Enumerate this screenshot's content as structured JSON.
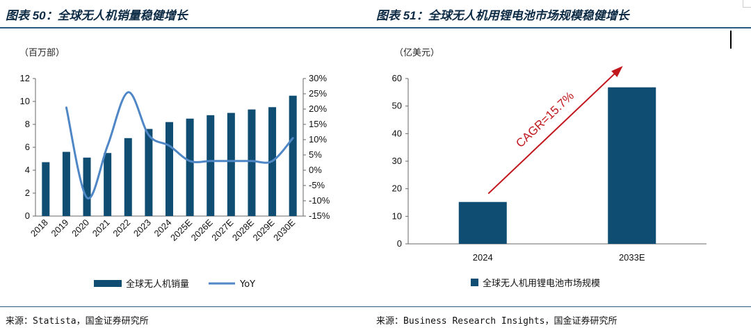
{
  "left_title": "图表 50：全球无人机销量稳健增长",
  "right_title": "图表 51：全球无人机用锂电池市场规模稳健增长",
  "left_unit": "（百万部）",
  "right_unit": "（亿美元）",
  "left_source": "来源：Statista，国金证券研究所",
  "right_source": "来源：Business Research Insights，国金证券研究所",
  "colors": {
    "bar": "#0f4d73",
    "line": "#4f86c6",
    "arrow": "#c0161c",
    "rule": "#2c5a7c",
    "title": "#0c2a44"
  },
  "chart_data": [
    {
      "type": "bar+line",
      "title": "全球无人机销量稳健增长",
      "categories": [
        "2018",
        "2019",
        "2020",
        "2021",
        "2022",
        "2023",
        "2024",
        "2025E",
        "2026E",
        "2027E",
        "2028E",
        "2029E",
        "2030E"
      ],
      "series": [
        {
          "name": "全球无人机销量",
          "type": "bar",
          "axis": "left",
          "values": [
            4.7,
            5.6,
            5.1,
            5.5,
            6.8,
            7.6,
            8.2,
            8.5,
            8.8,
            9.0,
            9.3,
            9.5,
            10.5
          ]
        },
        {
          "name": "YoY",
          "type": "line",
          "axis": "right",
          "unit": "%",
          "values": [
            null,
            20.5,
            -9.0,
            8.0,
            25.5,
            11.5,
            8.0,
            3.0,
            3.0,
            3.0,
            3.0,
            3.0,
            10.5
          ]
        }
      ],
      "left_axis": {
        "ylim": [
          0,
          12
        ],
        "ticks": [
          "0",
          "2",
          "4",
          "6",
          "8",
          "10",
          "12"
        ]
      },
      "right_axis": {
        "ylim": [
          -15,
          30
        ],
        "ticks": [
          "-15%",
          "-10%",
          "-5%",
          "0%",
          "5%",
          "10%",
          "15%",
          "20%",
          "25%",
          "30%"
        ]
      },
      "ylabel": "（百万部）",
      "legend": [
        "全球无人机销量",
        "YoY"
      ],
      "legend_position": "bottom"
    },
    {
      "type": "bar",
      "title": "全球无人机用锂电池市场规模稳健增长",
      "categories": [
        "2024",
        "2033E"
      ],
      "values": [
        15.2,
        56.8
      ],
      "ylim": [
        0,
        60
      ],
      "ticks": [
        "0",
        "10",
        "20",
        "30",
        "40",
        "50",
        "60"
      ],
      "ylabel": "（亿美元）",
      "annotation": "CAGR=15.7%",
      "legend": [
        "全球无人机用锂电池市场规模"
      ],
      "legend_position": "bottom"
    }
  ]
}
